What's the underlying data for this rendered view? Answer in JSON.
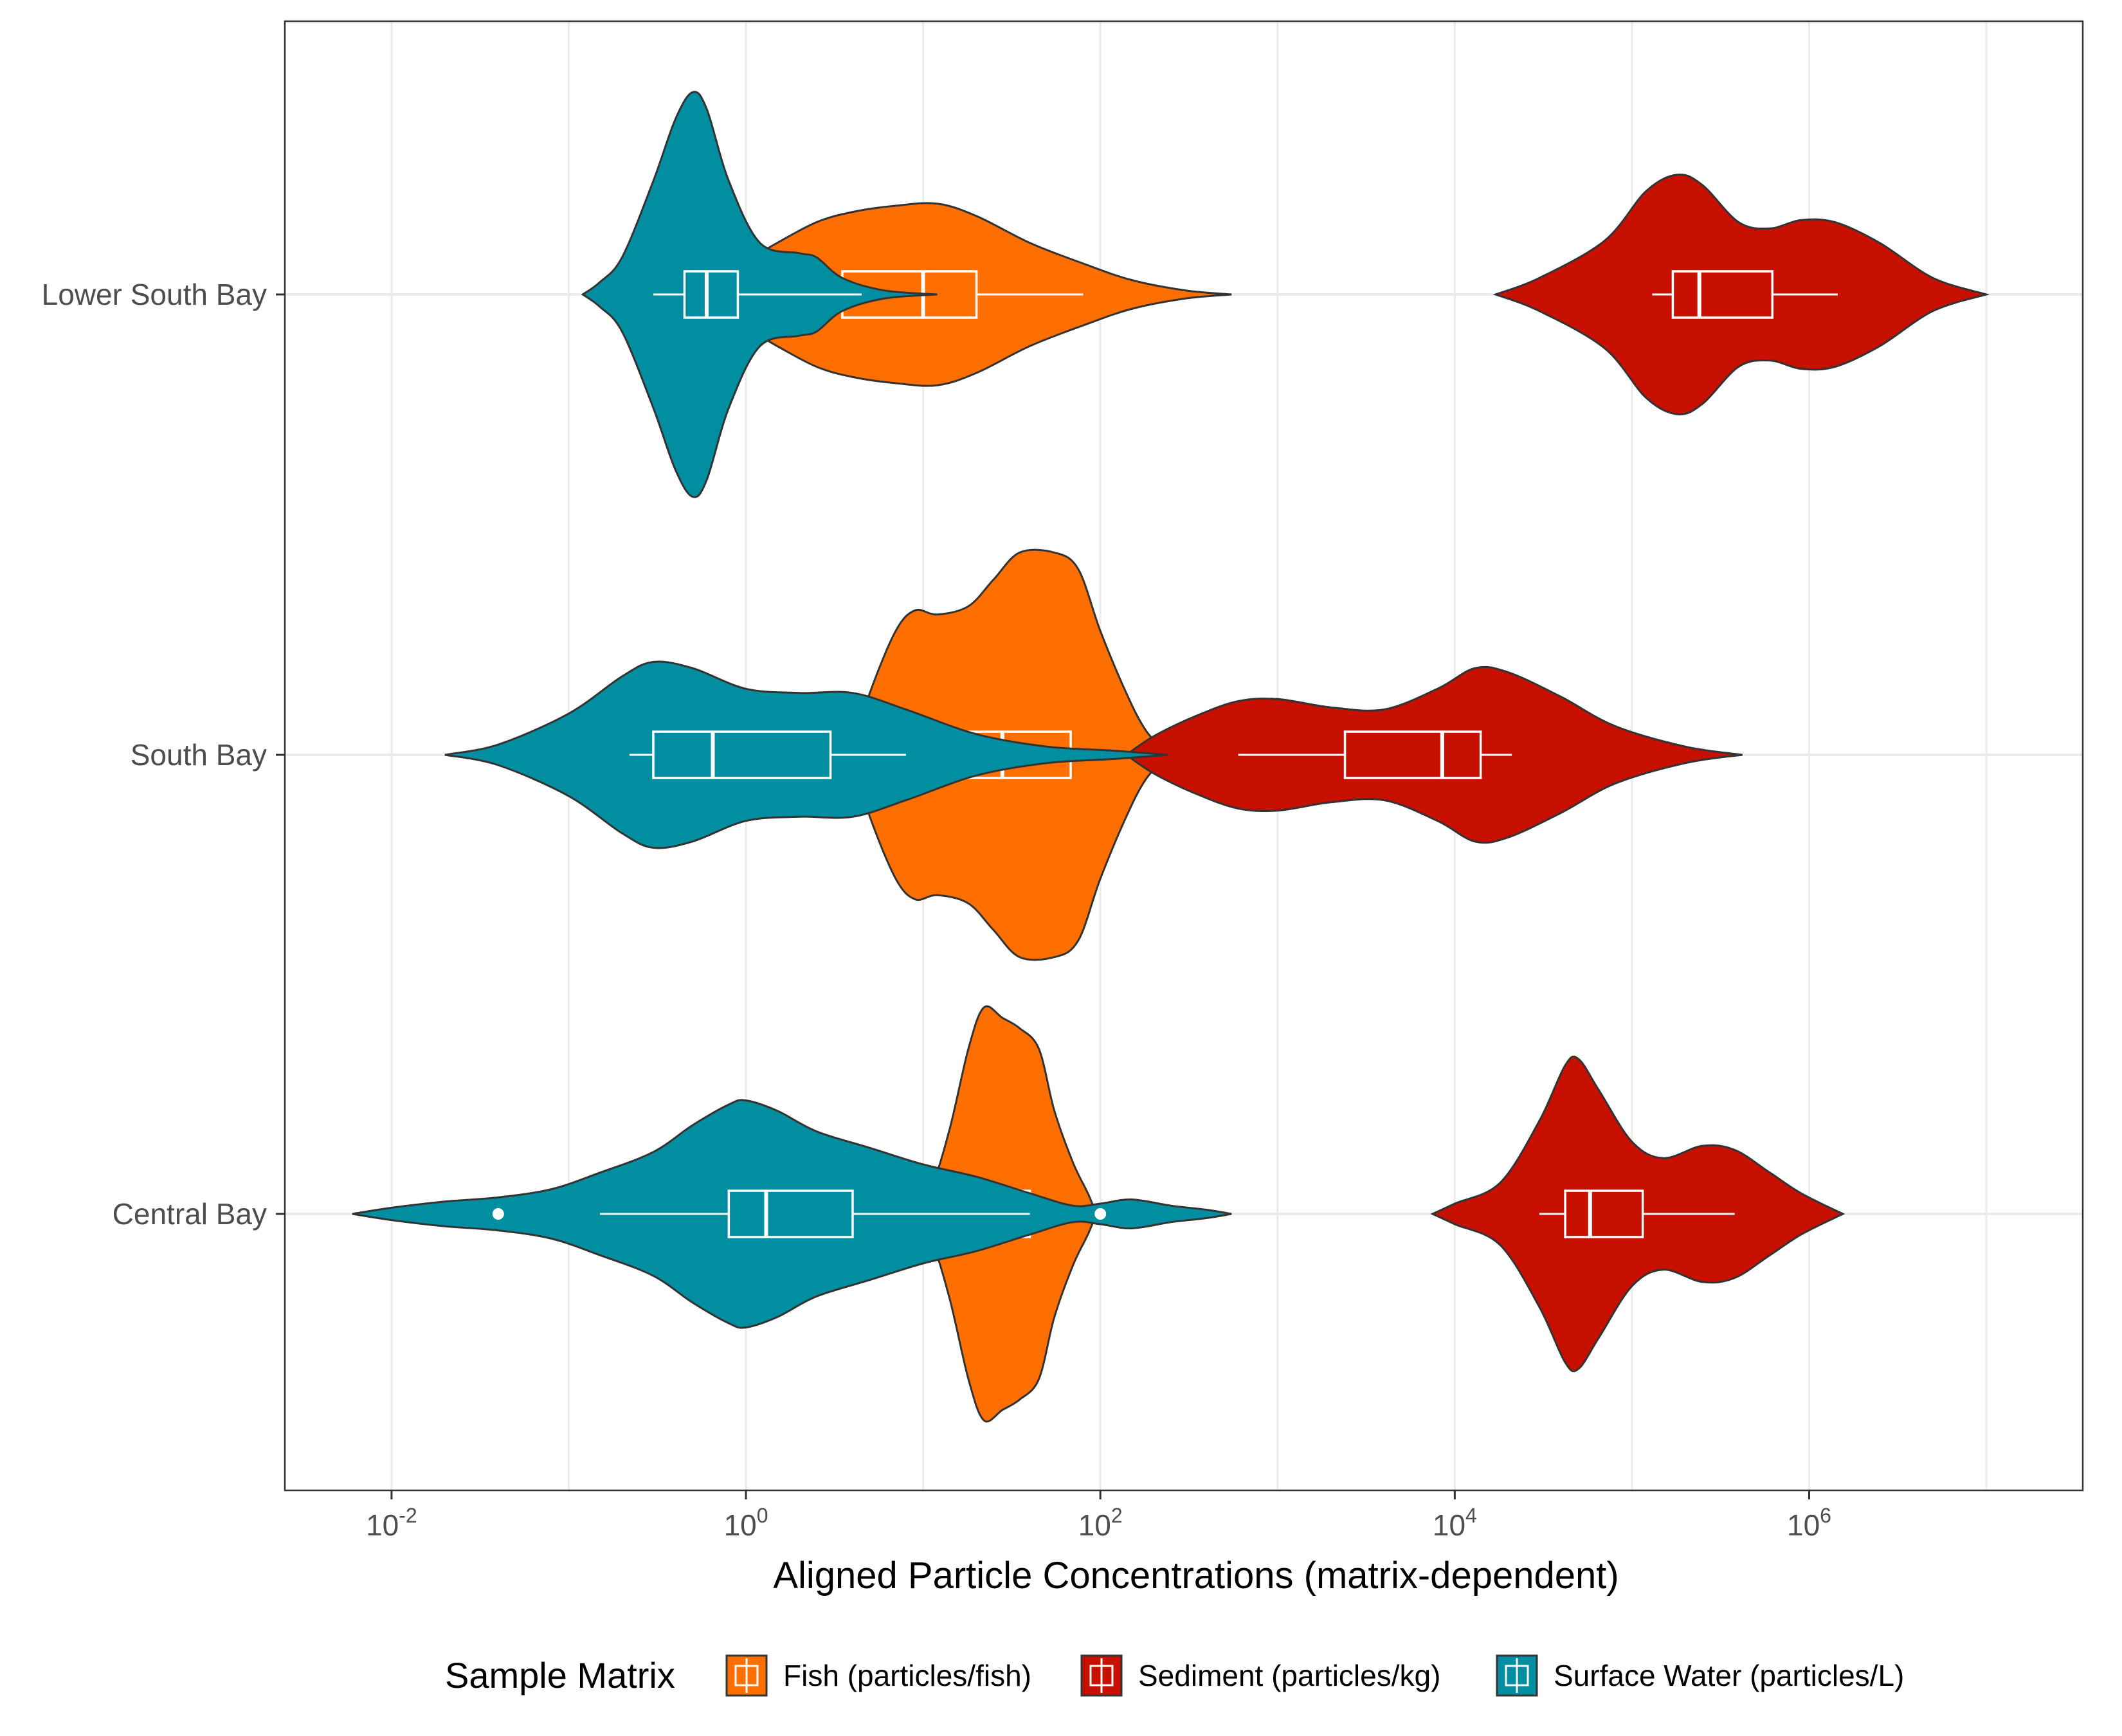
{
  "chart_data": {
    "type": "violin",
    "xlabel": "Aligned Particle Concentrations (matrix-dependent)",
    "xscale": "log10",
    "xlim": [
      0.0025,
      35000000
    ],
    "x_ticks": [
      {
        "value": 0.01,
        "base": "10",
        "exp": "-2"
      },
      {
        "value": 1,
        "base": "10",
        "exp": "0"
      },
      {
        "value": 100,
        "base": "10",
        "exp": "2"
      },
      {
        "value": 10000,
        "base": "10",
        "exp": "4"
      },
      {
        "value": 1000000,
        "base": "10",
        "exp": "6"
      }
    ],
    "categories": [
      "Central Bay",
      "South Bay",
      "Lower South Bay"
    ],
    "grid": true,
    "legend": {
      "title": "Sample Matrix",
      "position": "bottom",
      "entries": [
        {
          "label": "Fish (particles/fish)",
          "color": "#FF6F00"
        },
        {
          "label": "Sediment (particles/kg)",
          "color": "#C71000"
        },
        {
          "label": "Surface Water (particles/L)",
          "color": "#008EA0"
        }
      ]
    },
    "series": [
      {
        "name": "Fish (particles/fish)",
        "color": "#FF6F00",
        "groups": [
          {
            "category": "Central Bay",
            "min": 4.8,
            "max": 95,
            "box": {
              "q1": 18,
              "median": 24,
              "q3": 40
            },
            "whisker": [
              17,
              41
            ],
            "outliers": [],
            "density": [
              [
                4.8,
                0.0
              ],
              [
                6.0,
                0.1
              ],
              [
                8.0,
                0.12
              ],
              [
                11,
                0.14
              ],
              [
                14,
                0.4
              ],
              [
                18,
                0.8
              ],
              [
                22,
                1.0
              ],
              [
                28,
                0.95
              ],
              [
                35,
                0.9
              ],
              [
                45,
                0.8
              ],
              [
                55,
                0.5
              ],
              [
                70,
                0.25
              ],
              [
                85,
                0.1
              ],
              [
                95,
                0.0
              ]
            ]
          },
          {
            "category": "South Bay",
            "min": 3.9,
            "max": 240,
            "box": {
              "q1": 9,
              "median": 28,
              "q3": 68
            },
            "whisker": [
              8,
              140
            ],
            "outliers": [],
            "density": [
              [
                3.9,
                0.0
              ],
              [
                5,
                0.3
              ],
              [
                7,
                0.6
              ],
              [
                9,
                0.7
              ],
              [
                12,
                0.68
              ],
              [
                18,
                0.72
              ],
              [
                25,
                0.85
              ],
              [
                35,
                0.98
              ],
              [
                55,
                0.98
              ],
              [
                75,
                0.9
              ],
              [
                100,
                0.6
              ],
              [
                140,
                0.3
              ],
              [
                180,
                0.12
              ],
              [
                240,
                0.0
              ]
            ]
          },
          {
            "category": "Lower South Bay",
            "min": 0.45,
            "max": 550,
            "box": {
              "q1": 3.5,
              "median": 10,
              "q3": 20
            },
            "whisker": [
              3.2,
              80
            ],
            "outliers": [],
            "density": [
              [
                0.45,
                0.0
              ],
              [
                0.6,
                0.08
              ],
              [
                0.9,
                0.14
              ],
              [
                1.5,
                0.25
              ],
              [
                2.5,
                0.35
              ],
              [
                4,
                0.4
              ],
              [
                7,
                0.43
              ],
              [
                12,
                0.44
              ],
              [
                20,
                0.38
              ],
              [
                40,
                0.25
              ],
              [
                80,
                0.15
              ],
              [
                150,
                0.07
              ],
              [
                300,
                0.02
              ],
              [
                550,
                0.0
              ]
            ]
          }
        ]
      },
      {
        "name": "Sediment (particles/kg)",
        "color": "#C71000",
        "groups": [
          {
            "category": "Central Bay",
            "min": 7500,
            "max": 1550000,
            "box": {
              "q1": 42000,
              "median": 58000,
              "q3": 115000
            },
            "whisker": [
              30000,
              380000
            ],
            "outliers": [],
            "density": [
              [
                7500,
                0.0
              ],
              [
                10000,
                0.05
              ],
              [
                18000,
                0.15
              ],
              [
                30000,
                0.45
              ],
              [
                42000,
                0.72
              ],
              [
                50000,
                0.75
              ],
              [
                65000,
                0.6
              ],
              [
                100000,
                0.35
              ],
              [
                150000,
                0.27
              ],
              [
                250000,
                0.33
              ],
              [
                380000,
                0.31
              ],
              [
                600000,
                0.2
              ],
              [
                900000,
                0.1
              ],
              [
                1550000,
                0.0
              ]
            ]
          },
          {
            "category": "South Bay",
            "min": 140,
            "max": 420000,
            "box": {
              "q1": 2400,
              "median": 8500,
              "q3": 14000
            },
            "whisker": [
              600,
              21000
            ],
            "outliers": [],
            "density": [
              [
                140,
                0.0
              ],
              [
                200,
                0.09
              ],
              [
                350,
                0.19
              ],
              [
                600,
                0.26
              ],
              [
                1000,
                0.27
              ],
              [
                2000,
                0.23
              ],
              [
                4000,
                0.22
              ],
              [
                8000,
                0.32
              ],
              [
                13000,
                0.42
              ],
              [
                20000,
                0.4
              ],
              [
                40000,
                0.28
              ],
              [
                80000,
                0.14
              ],
              [
                200000,
                0.04
              ],
              [
                420000,
                0.0
              ]
            ]
          },
          {
            "category": "Lower South Bay",
            "min": 17000,
            "max": 10000000,
            "box": {
              "q1": 170000,
              "median": 240000,
              "q3": 620000
            },
            "whisker": [
              130000,
              1450000
            ],
            "outliers": [],
            "density": [
              [
                17000,
                0.0
              ],
              [
                30000,
                0.08
              ],
              [
                70000,
                0.26
              ],
              [
                120000,
                0.5
              ],
              [
                180000,
                0.58
              ],
              [
                250000,
                0.53
              ],
              [
                400000,
                0.35
              ],
              [
                600000,
                0.32
              ],
              [
                900000,
                0.36
              ],
              [
                1400000,
                0.35
              ],
              [
                2500000,
                0.25
              ],
              [
                5000000,
                0.08
              ],
              [
                10000000,
                0.0
              ]
            ]
          }
        ]
      },
      {
        "name": "Surface Water (particles/L)",
        "color": "#008EA0",
        "groups": [
          {
            "category": "Central Bay",
            "min": 0.006,
            "max": 550,
            "box": {
              "q1": 0.8,
              "median": 1.3,
              "q3": 4.0
            },
            "whisker": [
              0.15,
              40
            ],
            "outliers": [
              0.04,
              100
            ],
            "density": [
              [
                0.006,
                0.0
              ],
              [
                0.01,
                0.03
              ],
              [
                0.02,
                0.06
              ],
              [
                0.04,
                0.08
              ],
              [
                0.08,
                0.12
              ],
              [
                0.15,
                0.2
              ],
              [
                0.3,
                0.3
              ],
              [
                0.5,
                0.43
              ],
              [
                0.8,
                0.53
              ],
              [
                1.0,
                0.55
              ],
              [
                1.5,
                0.5
              ],
              [
                2.5,
                0.4
              ],
              [
                5,
                0.32
              ],
              [
                10,
                0.24
              ],
              [
                20,
                0.18
              ],
              [
                40,
                0.1
              ],
              [
                70,
                0.04
              ],
              [
                100,
                0.05
              ],
              [
                150,
                0.07
              ],
              [
                250,
                0.04
              ],
              [
                400,
                0.02
              ],
              [
                550,
                0.0
              ]
            ]
          },
          {
            "category": "South Bay",
            "min": 0.02,
            "max": 240,
            "box": {
              "q1": 0.3,
              "median": 0.65,
              "q3": 3.0
            },
            "whisker": [
              0.22,
              8
            ],
            "outliers": [],
            "density": [
              [
                0.02,
                0.0
              ],
              [
                0.04,
                0.05
              ],
              [
                0.1,
                0.2
              ],
              [
                0.2,
                0.38
              ],
              [
                0.3,
                0.45
              ],
              [
                0.5,
                0.42
              ],
              [
                1,
                0.32
              ],
              [
                2,
                0.3
              ],
              [
                4,
                0.3
              ],
              [
                8,
                0.22
              ],
              [
                20,
                0.1
              ],
              [
                50,
                0.04
              ],
              [
                120,
                0.02
              ],
              [
                240,
                0.0
              ]
            ]
          },
          {
            "category": "Lower South Bay",
            "min": 0.12,
            "max": 12,
            "box": {
              "q1": 0.45,
              "median": 0.6,
              "q3": 0.9
            },
            "whisker": [
              0.3,
              4.5
            ],
            "outliers": [],
            "density": [
              [
                0.12,
                0.0
              ],
              [
                0.15,
                0.06
              ],
              [
                0.2,
                0.18
              ],
              [
                0.3,
                0.55
              ],
              [
                0.4,
                0.85
              ],
              [
                0.5,
                0.98
              ],
              [
                0.6,
                0.9
              ],
              [
                0.8,
                0.55
              ],
              [
                1.2,
                0.25
              ],
              [
                2.0,
                0.2
              ],
              [
                2.5,
                0.18
              ],
              [
                3.5,
                0.08
              ],
              [
                6,
                0.02
              ],
              [
                12,
                0.0
              ]
            ]
          }
        ]
      }
    ]
  }
}
